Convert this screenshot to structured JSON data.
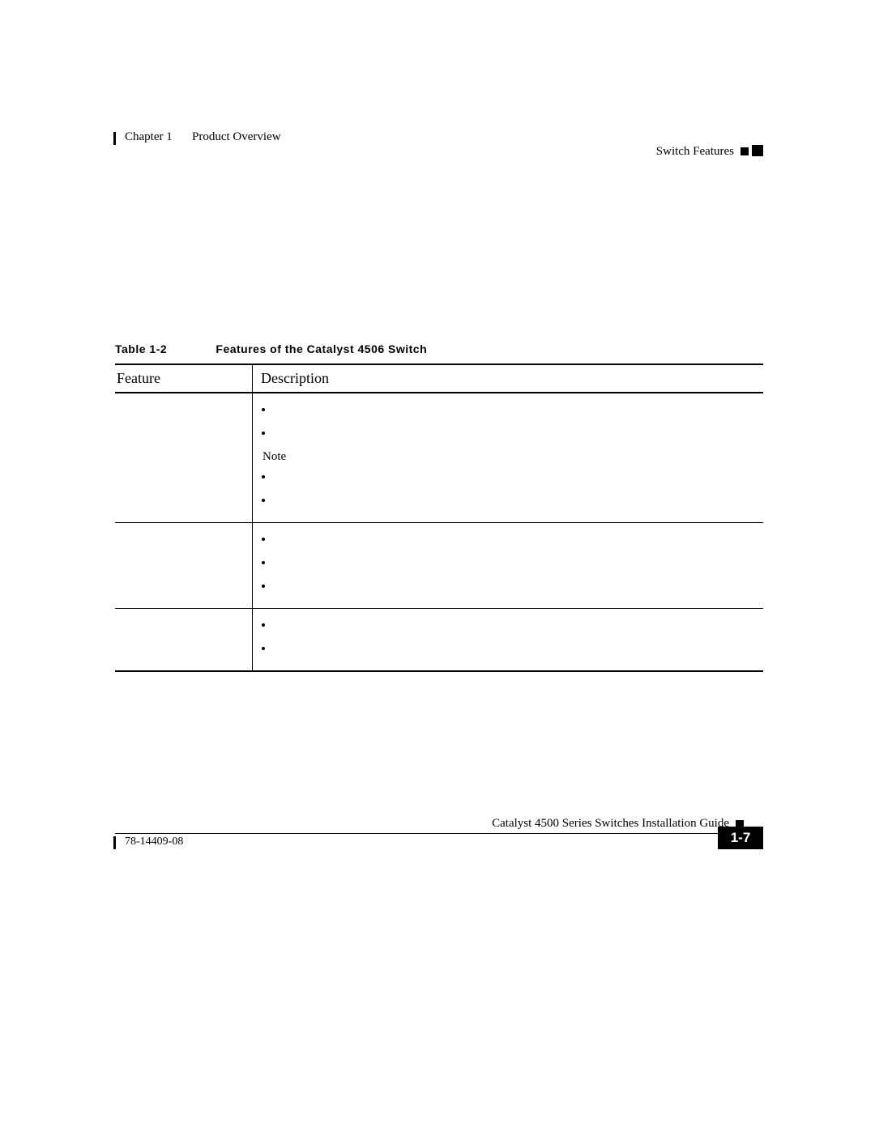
{
  "header": {
    "chapter": "Chapter 1",
    "title": "Product Overview",
    "section": "Switch Features"
  },
  "table": {
    "label": "Table 1-2",
    "caption": "Features of the Catalyst 4506 Switch",
    "columns": {
      "feature": "Feature",
      "description": "Description"
    },
    "rows": [
      {
        "feature": "",
        "bullets_before_note": [
          "",
          ""
        ],
        "note": "Note",
        "bullets_after_note": [
          "",
          ""
        ]
      },
      {
        "feature": "",
        "bullets": [
          "",
          "",
          ""
        ]
      },
      {
        "feature": "",
        "bullets": [
          "",
          ""
        ]
      }
    ]
  },
  "footer": {
    "book_title": "Catalyst 4500 Series Switches Installation Guide",
    "doc_number": "78-14409-08",
    "page_number": "1-7"
  },
  "style": {
    "page_bg": "#ffffff",
    "text_color": "#000000",
    "rule_color": "#000000"
  }
}
